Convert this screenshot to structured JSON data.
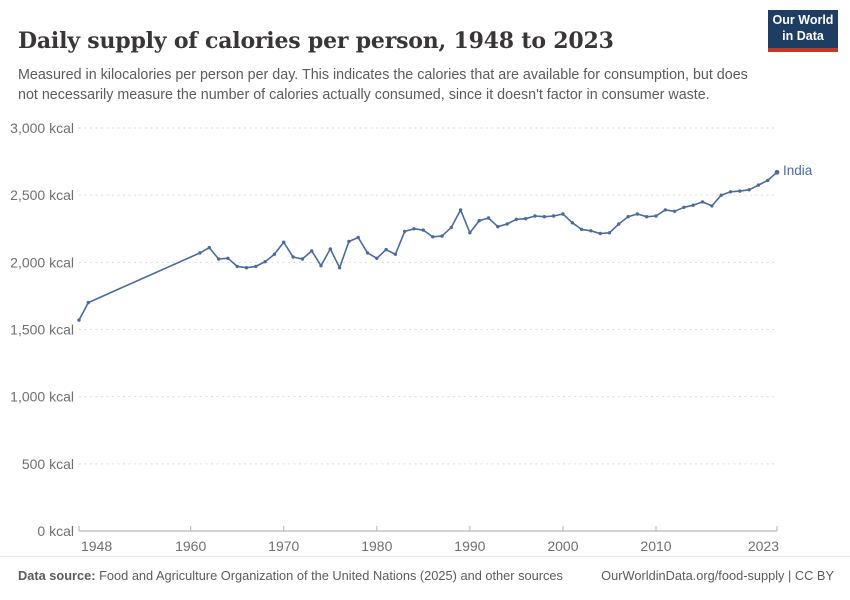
{
  "header": {
    "title": "Daily supply of calories per person, 1948 to 2023",
    "subtitle": "Measured in kilocalories per person per day. This indicates the calories that are available for consumption, but does not necessarily measure the number of calories actually consumed, since it doesn't factor in consumer waste.",
    "logo": {
      "line1": "Our World",
      "line2": "in Data",
      "bg_color": "#1d3d63",
      "accent_color": "#c0392b"
    }
  },
  "footer": {
    "source_label": "Data source:",
    "source_text": "Food and Agriculture Organization of the United Nations (2025) and other sources",
    "link_text": "OurWorldinData.org/food-supply | CC BY"
  },
  "chart_data": {
    "type": "line",
    "title": "Daily supply of calories per person, 1948 to 2023",
    "unit": "kcal",
    "xlabel": "",
    "ylabel": "",
    "xlim": [
      1948,
      2023
    ],
    "ylim": [
      0,
      3000
    ],
    "grid": "horizontal-dashed",
    "legend_position": "end-of-line-label",
    "y_ticks": [
      {
        "value": 0,
        "label": "0 kcal"
      },
      {
        "value": 500,
        "label": "500 kcal"
      },
      {
        "value": 1000,
        "label": "1,000 kcal"
      },
      {
        "value": 1500,
        "label": "1,500 kcal"
      },
      {
        "value": 2000,
        "label": "2,000 kcal"
      },
      {
        "value": 2500,
        "label": "2,500 kcal"
      },
      {
        "value": 3000,
        "label": "3,000 kcal"
      }
    ],
    "x_ticks": [
      {
        "value": 1948,
        "label": "1948"
      },
      {
        "value": 1960,
        "label": "1960"
      },
      {
        "value": 1970,
        "label": "1970"
      },
      {
        "value": 1980,
        "label": "1980"
      },
      {
        "value": 1990,
        "label": "1990"
      },
      {
        "value": 2000,
        "label": "2000"
      },
      {
        "value": 2010,
        "label": "2010"
      },
      {
        "value": 2023,
        "label": "2023"
      }
    ],
    "series": [
      {
        "name": "India",
        "color": "#4c6a9c",
        "points": [
          [
            1948,
            1570
          ],
          [
            1949,
            1700
          ],
          [
            1961,
            2070
          ],
          [
            1962,
            2110
          ],
          [
            1963,
            2025
          ],
          [
            1964,
            2030
          ],
          [
            1965,
            1970
          ],
          [
            1966,
            1960
          ],
          [
            1967,
            1970
          ],
          [
            1968,
            2005
          ],
          [
            1969,
            2060
          ],
          [
            1970,
            2150
          ],
          [
            1971,
            2040
          ],
          [
            1972,
            2025
          ],
          [
            1973,
            2085
          ],
          [
            1974,
            1975
          ],
          [
            1975,
            2100
          ],
          [
            1976,
            1960
          ],
          [
            1977,
            2155
          ],
          [
            1978,
            2185
          ],
          [
            1979,
            2070
          ],
          [
            1980,
            2030
          ],
          [
            1981,
            2095
          ],
          [
            1982,
            2060
          ],
          [
            1983,
            2230
          ],
          [
            1984,
            2250
          ],
          [
            1985,
            2240
          ],
          [
            1986,
            2190
          ],
          [
            1987,
            2195
          ],
          [
            1988,
            2260
          ],
          [
            1989,
            2390
          ],
          [
            1990,
            2220
          ],
          [
            1991,
            2310
          ],
          [
            1992,
            2330
          ],
          [
            1993,
            2265
          ],
          [
            1994,
            2285
          ],
          [
            1995,
            2320
          ],
          [
            1996,
            2325
          ],
          [
            1997,
            2345
          ],
          [
            1998,
            2340
          ],
          [
            1999,
            2345
          ],
          [
            2000,
            2360
          ],
          [
            2001,
            2295
          ],
          [
            2002,
            2245
          ],
          [
            2003,
            2235
          ],
          [
            2004,
            2215
          ],
          [
            2005,
            2220
          ],
          [
            2006,
            2285
          ],
          [
            2007,
            2340
          ],
          [
            2008,
            2360
          ],
          [
            2009,
            2340
          ],
          [
            2010,
            2345
          ],
          [
            2011,
            2390
          ],
          [
            2012,
            2380
          ],
          [
            2013,
            2410
          ],
          [
            2014,
            2425
          ],
          [
            2015,
            2450
          ],
          [
            2016,
            2420
          ],
          [
            2017,
            2500
          ],
          [
            2018,
            2525
          ],
          [
            2019,
            2530
          ],
          [
            2020,
            2540
          ],
          [
            2021,
            2575
          ],
          [
            2022,
            2610
          ],
          [
            2023,
            2670
          ]
        ]
      }
    ]
  }
}
